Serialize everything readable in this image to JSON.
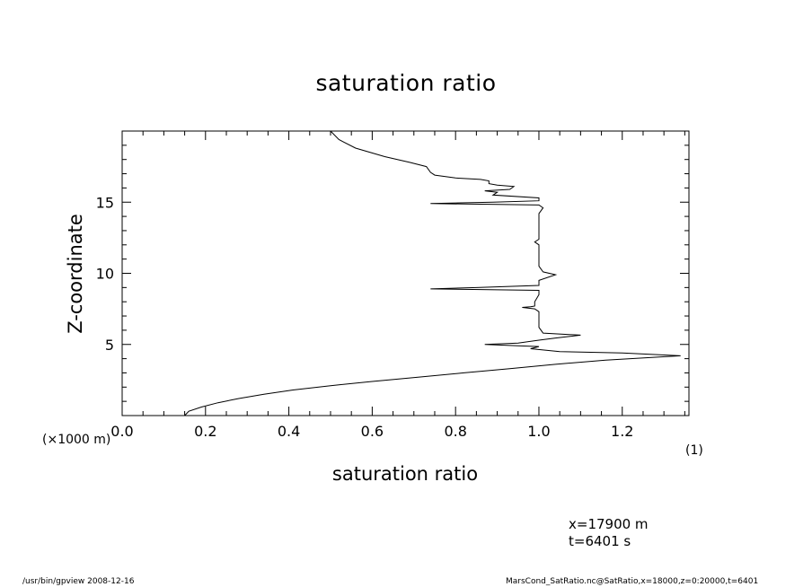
{
  "chart_data": {
    "type": "line",
    "title": "saturation ratio",
    "xlabel": "saturation ratio",
    "ylabel": "Z-coordinate",
    "x_unit": "(1)",
    "y_unit": "(×1000 m)",
    "xlim": [
      0.0,
      1.36
    ],
    "ylim": [
      0,
      20
    ],
    "xticks": [
      0.0,
      0.2,
      0.4,
      0.6,
      0.8,
      1.0,
      1.2
    ],
    "xtick_labels": [
      "0.0",
      "0.2",
      "0.4",
      "0.6",
      "0.8",
      "1.0",
      "1.2"
    ],
    "yticks": [
      5,
      10,
      15
    ],
    "ytick_labels": [
      "5",
      "10",
      "15"
    ],
    "grid": false,
    "series": [
      {
        "color": "#000000",
        "points": [
          [
            0.15,
            0.0
          ],
          [
            0.16,
            0.3
          ],
          [
            0.19,
            0.6
          ],
          [
            0.23,
            0.9
          ],
          [
            0.28,
            1.2
          ],
          [
            0.34,
            1.5
          ],
          [
            0.41,
            1.8
          ],
          [
            0.5,
            2.1
          ],
          [
            0.6,
            2.4
          ],
          [
            0.71,
            2.7
          ],
          [
            0.82,
            3.0
          ],
          [
            0.93,
            3.3
          ],
          [
            1.04,
            3.6
          ],
          [
            1.16,
            3.9
          ],
          [
            1.34,
            4.2
          ],
          [
            1.2,
            4.4
          ],
          [
            1.05,
            4.5
          ],
          [
            0.98,
            4.7
          ],
          [
            1.0,
            4.85
          ],
          [
            0.95,
            4.9
          ],
          [
            0.87,
            5.0
          ],
          [
            0.95,
            5.1
          ],
          [
            1.0,
            5.3
          ],
          [
            1.04,
            5.45
          ],
          [
            1.07,
            5.55
          ],
          [
            1.1,
            5.65
          ],
          [
            1.01,
            5.8
          ],
          [
            1.0,
            6.2
          ],
          [
            1.0,
            7.0
          ],
          [
            1.0,
            7.3
          ],
          [
            0.99,
            7.5
          ],
          [
            0.96,
            7.6
          ],
          [
            0.98,
            7.65
          ],
          [
            0.99,
            7.7
          ],
          [
            0.99,
            8.0
          ],
          [
            1.0,
            8.5
          ],
          [
            1.0,
            8.8
          ],
          [
            0.74,
            8.9
          ],
          [
            0.85,
            9.0
          ],
          [
            1.0,
            9.15
          ],
          [
            1.0,
            9.5
          ],
          [
            1.04,
            9.9
          ],
          [
            1.01,
            10.1
          ],
          [
            1.0,
            10.5
          ],
          [
            1.0,
            12.0
          ],
          [
            0.99,
            12.2
          ],
          [
            1.0,
            12.4
          ],
          [
            1.0,
            13.5
          ],
          [
            1.0,
            14.2
          ],
          [
            1.01,
            14.6
          ],
          [
            1.0,
            14.8
          ],
          [
            0.74,
            14.9
          ],
          [
            0.89,
            15.0
          ],
          [
            1.0,
            15.1
          ],
          [
            1.0,
            15.3
          ],
          [
            0.89,
            15.5
          ],
          [
            0.9,
            15.7
          ],
          [
            0.87,
            15.8
          ],
          [
            0.93,
            15.9
          ],
          [
            0.94,
            16.1
          ],
          [
            0.9,
            16.2
          ],
          [
            0.88,
            16.3
          ],
          [
            0.88,
            16.5
          ],
          [
            0.86,
            16.6
          ],
          [
            0.8,
            16.7
          ],
          [
            0.75,
            16.9
          ],
          [
            0.74,
            17.1
          ],
          [
            0.73,
            17.5
          ],
          [
            0.69,
            17.8
          ],
          [
            0.63,
            18.2
          ],
          [
            0.56,
            18.8
          ],
          [
            0.52,
            19.4
          ],
          [
            0.5,
            20.0
          ]
        ]
      }
    ]
  },
  "info": {
    "x_position": "x=17900  m",
    "time": "t=6401  s"
  },
  "footer": {
    "left": "/usr/bin/gpview   2008-12-16",
    "right": "MarsCond_SatRatio.nc@SatRatio,x=18000,z=0:20000,t=6401"
  }
}
